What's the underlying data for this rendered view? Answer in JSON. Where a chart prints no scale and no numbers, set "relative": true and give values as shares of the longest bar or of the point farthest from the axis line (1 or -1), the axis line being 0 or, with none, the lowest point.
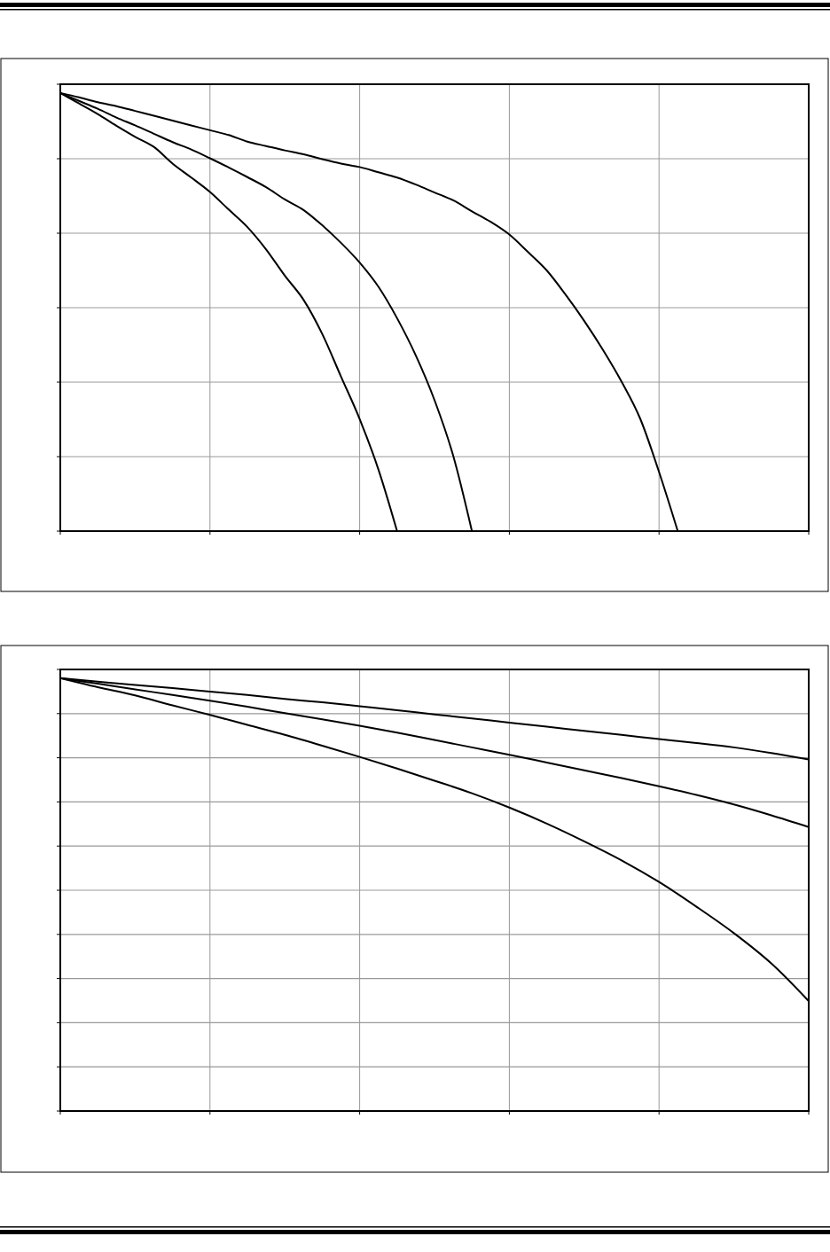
{
  "chart_data": [
    {
      "type": "line",
      "relative": true,
      "grid": true,
      "categories": [
        null,
        null,
        null,
        null,
        null,
        null,
        null,
        null,
        null,
        null,
        null,
        null,
        null,
        null,
        null,
        null,
        null,
        null,
        null,
        null,
        null,
        null,
        null,
        null,
        null,
        null,
        null,
        null,
        null,
        null,
        null,
        null,
        null,
        null,
        null,
        null,
        null,
        null,
        null,
        null,
        null
      ],
      "series": [
        {
          "color": "#000000",
          "values": [
            1,
            0.976,
            0.952,
            0.925,
            0.9,
            0.877,
            0.839,
            0.807,
            0.774,
            0.734,
            0.694,
            0.643,
            0.583,
            0.528,
            0.45,
            0.353,
            0.256,
            0.141,
            0,
            null,
            null,
            null,
            null,
            null,
            null,
            null,
            null,
            null,
            null,
            null,
            null,
            null,
            null,
            null,
            null,
            null,
            null,
            null,
            null,
            null,
            null
          ]
        },
        {
          "color": "#000000",
          "values": [
            1,
            0.982,
            0.964,
            0.944,
            0.926,
            0.907,
            0.888,
            0.871,
            0.851,
            0.83,
            0.808,
            0.785,
            0.757,
            0.733,
            0.698,
            0.658,
            0.613,
            0.558,
            0.486,
            0.401,
            0.299,
            0.172,
            0,
            null,
            null,
            null,
            null,
            null,
            null,
            null,
            null,
            null,
            null,
            null,
            null,
            null,
            null,
            null,
            null,
            null,
            null
          ]
        },
        {
          "color": "#000000",
          "values": [
            1,
            0.99,
            0.979,
            0.97,
            0.959,
            0.948,
            0.937,
            0.926,
            0.915,
            0.904,
            0.889,
            0.879,
            0.869,
            0.86,
            0.849,
            0.839,
            0.831,
            0.819,
            0.807,
            0.791,
            0.773,
            0.755,
            0.73,
            0.706,
            0.677,
            0.637,
            0.595,
            0.54,
            0.48,
            0.414,
            0.341,
            0.256,
            0.135,
            0,
            null,
            null,
            null,
            null,
            null,
            null,
            null
          ]
        }
      ]
    },
    {
      "type": "line",
      "relative": true,
      "grid": true,
      "categories": [
        null,
        null,
        null,
        null,
        null,
        null,
        null,
        null,
        null,
        null,
        null,
        null,
        null,
        null,
        null,
        null,
        null,
        null,
        null,
        null,
        null
      ],
      "series": [
        {
          "color": "#000000",
          "values": [
            1,
            0.992,
            0.984,
            0.977,
            0.969,
            0.961,
            0.952,
            0.944,
            0.935,
            0.926,
            0.916,
            0.907,
            0.897,
            0.888,
            0.878,
            0.869,
            0.859,
            0.85,
            0.84,
            0.827,
            0.812
          ]
        },
        {
          "color": "#000000",
          "values": [
            1,
            0.987,
            0.974,
            0.961,
            0.948,
            0.934,
            0.919,
            0.905,
            0.89,
            0.874,
            0.857,
            0.84,
            0.823,
            0.805,
            0.787,
            0.769,
            0.75,
            0.73,
            0.708,
            0.683,
            0.656
          ]
        },
        {
          "color": "#000000",
          "values": [
            1,
            0.979,
            0.96,
            0.937,
            0.915,
            0.892,
            0.869,
            0.844,
            0.818,
            0.791,
            0.763,
            0.734,
            0.701,
            0.664,
            0.623,
            0.579,
            0.529,
            0.472,
            0.411,
            0.341,
            0.254
          ]
        }
      ]
    }
  ]
}
